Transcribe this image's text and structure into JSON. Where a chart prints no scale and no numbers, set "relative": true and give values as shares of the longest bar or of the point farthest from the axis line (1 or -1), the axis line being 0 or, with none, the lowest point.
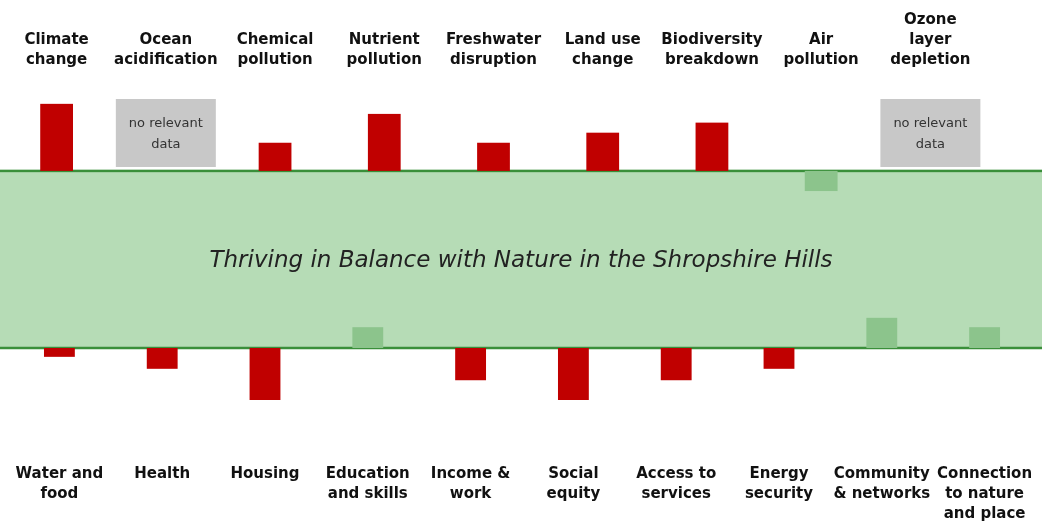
{
  "chart_data": [
    {
      "type": "bar",
      "relative": true,
      "categories": [
        "Climate change",
        "Ocean acidification",
        "Chemical pollution",
        "Nutrient pollution",
        "Freshwater disruption",
        "Land use change",
        "Biodiversity breakdown",
        "Air pollution",
        "Ozone layer depletion"
      ],
      "values": [
        1,
        null,
        0.42,
        0.85,
        0.42,
        0.57,
        0.72,
        -0.3,
        null
      ],
      "colors": [
        "#c00000",
        null,
        "#c00000",
        "#c00000",
        "#c00000",
        "#c00000",
        "#c00000",
        "#8cc48c",
        null
      ],
      "bands": [
        {
          "axis": "y",
          "from": -2.64,
          "to": 0,
          "label": "Thriving in Balance with Nature in the Shropshire Hills",
          "color": "#b6dcb6"
        }
      ],
      "annotations": [
        "no relevant data",
        "no relevant data"
      ]
    },
    {
      "type": "bar",
      "relative": true,
      "categories": [
        "Water and food",
        "Health",
        "Housing",
        "Education and skills",
        "Income & work",
        "Social equity",
        "Access to services",
        "Energy security",
        "Community & networks",
        "Connection to nature and place"
      ],
      "values": [
        -0.17,
        -0.4,
        -1,
        0.4,
        -0.62,
        -1,
        -0.62,
        -0.4,
        0.58,
        0.4
      ],
      "colors": [
        "#c00000",
        "#c00000",
        "#c00000",
        "#8cc48c",
        "#c00000",
        "#c00000",
        "#c00000",
        "#c00000",
        "#8cc48c",
        "#8cc48c"
      ]
    }
  ]
}
